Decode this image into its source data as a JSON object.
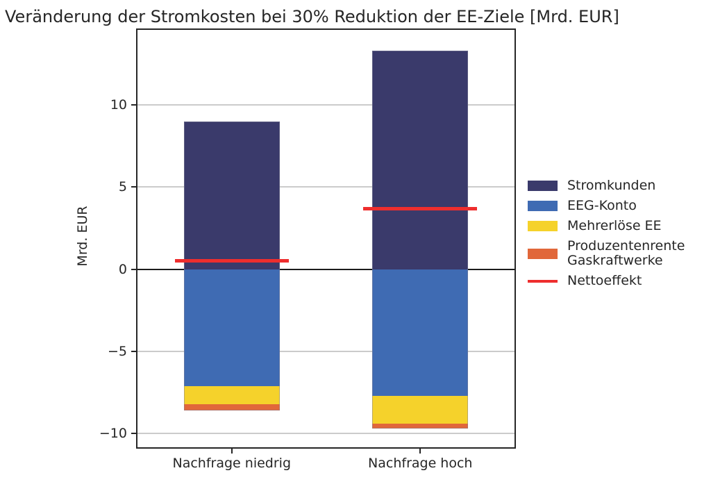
{
  "chart_data": {
    "type": "bar",
    "stacked": true,
    "title": "Veränderung der Stromkosten bei 30% Reduktion der EE-Ziele [Mrd. EUR]",
    "ylabel": "Mrd. EUR",
    "xlabel": "",
    "categories": [
      "Nachfrage niedrig",
      "Nachfrage hoch"
    ],
    "series": [
      {
        "name": "Stromkunden",
        "color": "#3a3a6b",
        "values": [
          9.0,
          13.3
        ]
      },
      {
        "name": "EEG-Konto",
        "color": "#3f6bb3",
        "values": [
          -7.1,
          -7.7
        ]
      },
      {
        "name": "Mehrerlöse EE",
        "color": "#f5d22b",
        "values": [
          -1.1,
          -1.7
        ]
      },
      {
        "name": "Produzentenrente Gaskraftwerke",
        "color": "#e1673a",
        "values": [
          -0.4,
          -0.3
        ]
      }
    ],
    "net_line": {
      "name": "Nettoeffekt",
      "color": "#ee2e2e",
      "values": [
        0.5,
        3.7
      ]
    },
    "yticks": [
      {
        "value": 10,
        "label": "10"
      },
      {
        "value": 5,
        "label": "5"
      },
      {
        "value": 0,
        "label": "0"
      },
      {
        "value": -5,
        "label": "−5"
      },
      {
        "value": -10,
        "label": "−10"
      }
    ],
    "ylim": [
      -10.83,
      14.56
    ],
    "grid": true,
    "zero_line": true,
    "legend_position": "right",
    "legend": [
      {
        "label": "Stromkunden",
        "color": "#3a3a6b",
        "type": "patch"
      },
      {
        "label": "EEG-Konto",
        "color": "#3f6bb3",
        "type": "patch"
      },
      {
        "label": "Mehrerlöse EE",
        "color": "#f5d22b",
        "type": "patch"
      },
      {
        "label": "Produzentenrente\nGaskraftwerke",
        "color": "#e1673a",
        "type": "patch"
      },
      {
        "label": "Nettoeffekt",
        "color": "#ee2e2e",
        "type": "line"
      }
    ]
  }
}
